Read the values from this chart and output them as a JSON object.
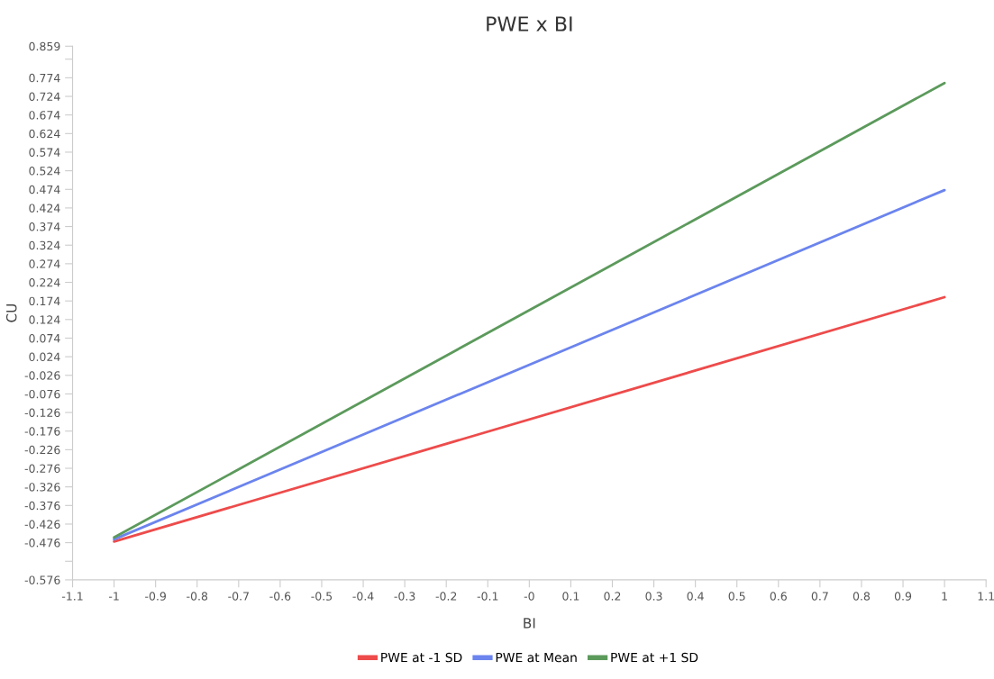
{
  "chart_data": {
    "type": "line",
    "title": "PWE x BI",
    "xlabel": "BI",
    "ylabel": "CU",
    "x": [
      -1,
      1
    ],
    "series": [
      {
        "name": "PWE at -1 SD",
        "color": "#ee4b4b",
        "values": [
          -0.473,
          0.184
        ]
      },
      {
        "name": "PWE at Mean",
        "color": "#6b84ee",
        "values": [
          -0.467,
          0.472
        ]
      },
      {
        "name": "PWE at +1 SD",
        "color": "#5c9a5c",
        "values": [
          -0.462,
          0.76
        ]
      }
    ],
    "xlim": [
      -1.1,
      1.1
    ],
    "xticks": [
      -1.1,
      -1,
      -0.9,
      -0.8,
      -0.7,
      -0.6,
      -0.5,
      -0.4,
      -0.3,
      -0.2,
      -0.1,
      {
        "value": 0,
        "label": "-0"
      },
      0.1,
      0.2,
      0.3,
      0.4,
      0.5,
      0.6,
      0.7,
      0.8,
      0.9,
      1,
      1.1
    ],
    "ylim": [
      -0.576,
      0.859
    ],
    "yticks": [
      0.859,
      {
        "value": 0.824,
        "label": null
      },
      0.774,
      0.724,
      0.674,
      0.624,
      0.574,
      0.524,
      0.474,
      0.424,
      0.374,
      0.324,
      0.274,
      0.224,
      0.174,
      0.124,
      0.074,
      0.024,
      -0.026,
      -0.076,
      -0.126,
      -0.176,
      -0.226,
      -0.276,
      -0.326,
      -0.376,
      -0.426,
      -0.476,
      {
        "value": -0.526,
        "label": null
      },
      -0.576
    ],
    "grid": false,
    "legend": "bottom",
    "marker": "none",
    "line_style": "solid"
  }
}
